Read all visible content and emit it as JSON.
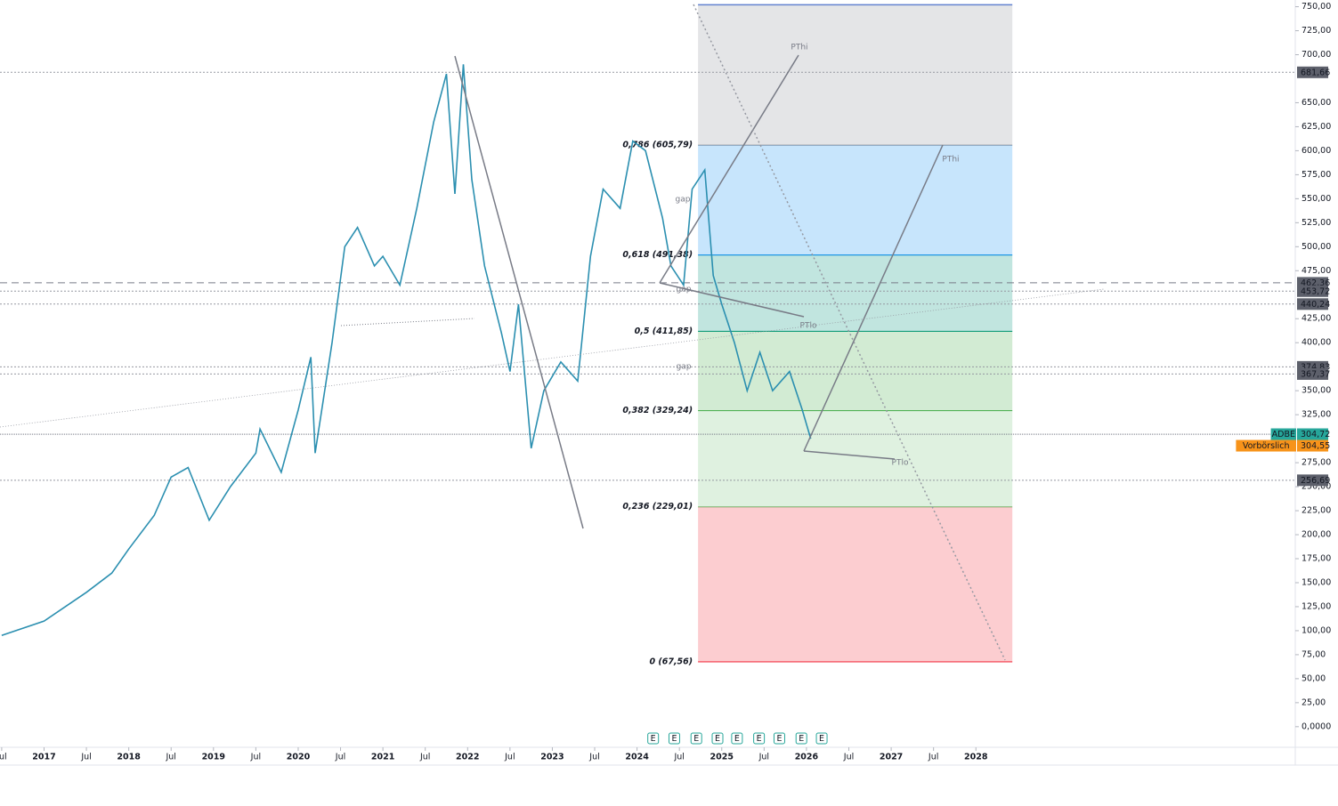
{
  "chart_data": {
    "type": "line",
    "series": [
      {
        "name": "ADBE",
        "color": "#2b8fb0",
        "x": [
          2016.5,
          2017.0,
          2017.5,
          2017.8,
          2018.0,
          2018.3,
          2018.5,
          2018.7,
          2018.95,
          2019.2,
          2019.5,
          2019.55,
          2019.8,
          2020.0,
          2020.15,
          2020.2,
          2020.4,
          2020.55,
          2020.7,
          2020.9,
          2021.0,
          2021.2,
          2021.4,
          2021.6,
          2021.75,
          2021.85,
          2021.95,
          2022.05,
          2022.2,
          2022.4,
          2022.5,
          2022.6,
          2022.75,
          2022.9,
          2023.1,
          2023.3,
          2023.45,
          2023.6,
          2023.8,
          2023.95,
          2024.1,
          2024.3,
          2024.4,
          2024.55,
          2024.65,
          2024.8,
          2024.9,
          2025.0,
          2025.15,
          2025.3,
          2025.45,
          2025.6,
          2025.8,
          2025.95,
          2026.05
        ],
        "values": [
          95,
          110,
          140,
          160,
          185,
          220,
          260,
          270,
          215,
          250,
          285,
          310,
          265,
          330,
          385,
          285,
          400,
          500,
          520,
          480,
          490,
          460,
          540,
          630,
          680,
          555,
          690,
          570,
          480,
          410,
          370,
          440,
          290,
          350,
          380,
          360,
          490,
          560,
          540,
          610,
          600,
          530,
          480,
          460,
          560,
          580,
          470,
          440,
          400,
          350,
          390,
          350,
          370,
          330,
          300
        ]
      }
    ],
    "xlim": [
      2016.48,
      2031.77
    ],
    "xticks": [
      {
        "value": 2016.5,
        "label": "Jul"
      },
      2017,
      {
        "value": 2017.5,
        "label": "Jul"
      },
      2018,
      {
        "value": 2018.5,
        "label": "Jul"
      },
      2019,
      {
        "value": 2019.5,
        "label": "Jul"
      },
      2020,
      {
        "value": 2020.5,
        "label": "Jul"
      },
      2021,
      {
        "value": 2021.5,
        "label": "Jul"
      },
      2022,
      {
        "value": 2022.5,
        "label": "Jul"
      },
      2023,
      {
        "value": 2023.5,
        "label": "Jul"
      },
      2024,
      {
        "value": 2024.5,
        "label": "Jul"
      },
      2025,
      {
        "value": 2025.5,
        "label": "Jul"
      },
      2026,
      {
        "value": 2026.5,
        "label": "Jul"
      },
      2027,
      {
        "value": 2027.5,
        "label": "Jul"
      },
      2028
    ],
    "ylim": [
      -40,
      757
    ],
    "yticks": [
      {
        "value": 0,
        "label": "0,0000"
      },
      {
        "value": 25,
        "label": "25,00"
      },
      {
        "value": 50,
        "label": "50,00"
      },
      {
        "value": 75,
        "label": "75,00"
      },
      {
        "value": 100,
        "label": "100,00"
      },
      {
        "value": 125,
        "label": "125,00"
      },
      {
        "value": 150,
        "label": "150,00"
      },
      {
        "value": 175,
        "label": "175,00"
      },
      {
        "value": 200,
        "label": "200,00"
      },
      {
        "value": 225,
        "label": "225,00"
      },
      {
        "value": 250,
        "label": "250,00"
      },
      {
        "value": 275,
        "label": "275,00"
      },
      {
        "value": 325,
        "label": "325,00"
      },
      {
        "value": 350,
        "label": "350,00"
      },
      {
        "value": 400,
        "label": "400,00"
      },
      {
        "value": 425,
        "label": "425,00"
      },
      {
        "value": 475,
        "label": "475,00"
      },
      {
        "value": 500,
        "label": "500,00"
      },
      {
        "value": 525,
        "label": "525,00"
      },
      {
        "value": 550,
        "label": "550,00"
      },
      {
        "value": 575,
        "label": "575,00"
      },
      {
        "value": 600,
        "label": "600,00"
      },
      {
        "value": 625,
        "label": "625,00"
      },
      {
        "value": 650,
        "label": "650,00"
      },
      {
        "value": 700,
        "label": "700,00"
      },
      {
        "value": 725,
        "label": "725,00"
      },
      {
        "value": 750,
        "label": "750,00"
      }
    ],
    "levels": [
      {
        "value": 681.66,
        "label": "681,66"
      },
      {
        "value": 462.36,
        "label": "462,36"
      },
      {
        "value": 453.72,
        "label": "453,72"
      },
      {
        "value": 440.24,
        "label": "440,24"
      },
      {
        "value": 374.83,
        "label": "374,83"
      },
      {
        "value": 367.37,
        "label": "367,37"
      },
      {
        "value": 256.69,
        "label": "256,69"
      }
    ],
    "badges": [
      {
        "name": "ADBE",
        "value": 304.72,
        "label": "304,72",
        "color": "#26a69a"
      },
      {
        "name": "Vorbörslich",
        "value": 304.55,
        "label": "304,55",
        "color": "#f7931a"
      }
    ],
    "fib_top": 752,
    "fib_start": 2024.72,
    "fib_end": 2028.43,
    "fib": [
      {
        "value": 605.79,
        "label": "0,786 (605,79)",
        "color": "#9598a1"
      },
      {
        "value": 491.38,
        "label": "0,618 (491,38)",
        "color": "#2196f3"
      },
      {
        "value": 411.85,
        "label": "0,5 (411,85)",
        "color": "#089981"
      },
      {
        "value": 329.24,
        "label": "0,382 (329,24)",
        "color": "#4caf50"
      },
      {
        "value": 229.01,
        "label": "0,236 (229,01)",
        "color": "#81c784"
      },
      {
        "value": 67.56,
        "label": "0 (67,56)",
        "color": "#f23645"
      }
    ],
    "events": [
      {
        "x": 2024.19,
        "label": "E"
      },
      {
        "x": 2024.44,
        "label": "E"
      },
      {
        "x": 2024.7,
        "label": "E"
      },
      {
        "x": 2024.95,
        "label": "E"
      },
      {
        "x": 2025.18,
        "label": "E"
      },
      {
        "x": 2025.44,
        "label": "E"
      },
      {
        "x": 2025.68,
        "label": "E"
      },
      {
        "x": 2025.94,
        "label": "E"
      },
      {
        "x": 2026.18,
        "label": "E"
      }
    ],
    "annotations": [
      "PThi",
      "PThi",
      "PTlo",
      "PTlo",
      "gap",
      "gap",
      "gap"
    ]
  }
}
